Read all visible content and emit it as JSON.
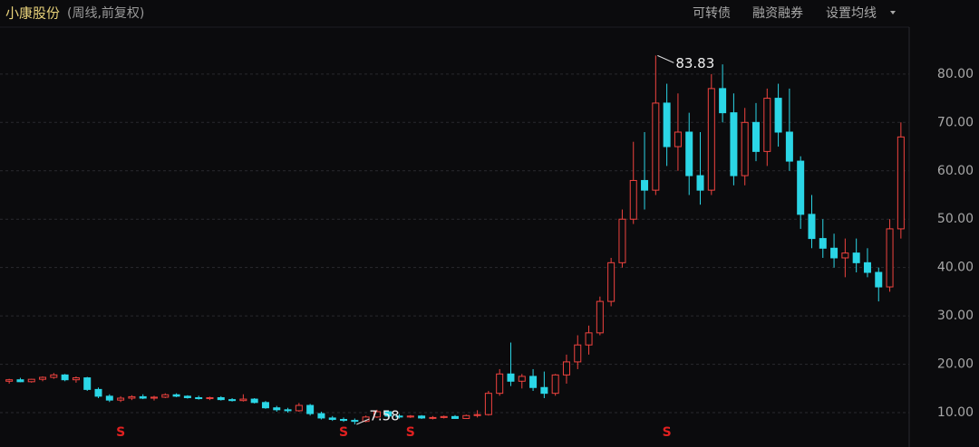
{
  "header": {
    "title": "小康股份",
    "subtitle": "(周线,前复权)",
    "buttons": [
      "可转债",
      "融资融券",
      "设置均线"
    ]
  },
  "chart_data": {
    "type": "candlestick",
    "open": [
      16.5,
      16.8,
      16.4,
      16.9,
      17.3,
      17.8,
      16.8,
      17.2,
      14.8,
      13.4,
      12.6,
      13,
      13.3,
      13,
      13.2,
      13.7,
      13.4,
      13.1,
      12.9,
      13.1,
      12.7,
      12.5,
      12.8,
      12.1,
      11,
      10.6,
      10.4,
      11.5,
      9.8,
      8.9,
      8.6,
      8.4,
      8.2,
      9.1,
      10.2,
      9.3,
      9.1,
      9.3,
      8.9,
      9,
      9.2,
      8.8,
      9.4,
      9.6,
      14,
      18,
      16.5,
      17.5,
      15.2,
      14,
      17.8,
      20.5,
      24,
      26.5,
      33,
      41,
      50,
      58,
      56,
      74,
      65,
      68,
      59,
      56,
      77,
      72,
      59,
      70,
      64,
      75,
      68,
      62,
      51,
      46,
      44,
      42,
      43,
      41,
      39,
      36,
      48
    ],
    "high": [
      17,
      17.2,
      17,
      17.5,
      18.2,
      18,
      17.5,
      17.4,
      15.2,
      13.8,
      13.4,
      13.6,
      13.8,
      13.5,
      14,
      14,
      13.6,
      13.5,
      13.3,
      13.4,
      13,
      13.8,
      13,
      12.4,
      11.4,
      11,
      12,
      11.8,
      10.2,
      9.3,
      9,
      8.8,
      9.4,
      10.6,
      10.4,
      9.7,
      9.5,
      9.5,
      9.3,
      9.4,
      9.5,
      9.6,
      10.5,
      14.5,
      19,
      24.5,
      18,
      19,
      18.5,
      18,
      22,
      26,
      28,
      34,
      42,
      52,
      66,
      68,
      83.83,
      78,
      76,
      72,
      68,
      80,
      82,
      76,
      73,
      74,
      77,
      78,
      77,
      63,
      55,
      50,
      47,
      46,
      46,
      44,
      40,
      50,
      70
    ],
    "low": [
      16,
      16.3,
      16.2,
      16.5,
      17,
      16.5,
      16.2,
      14.5,
      13,
      12.2,
      12.2,
      12.6,
      12.8,
      12.5,
      13,
      13.2,
      12.9,
      12.7,
      12.6,
      12.5,
      12.3,
      12.3,
      11.9,
      10.8,
      10.2,
      10,
      10.2,
      9.4,
      8.6,
      8.3,
      8.1,
      7.58,
      8,
      8.9,
      9,
      8.8,
      8.9,
      8.7,
      8.6,
      8.8,
      8.7,
      8.7,
      9,
      9.4,
      13.5,
      15.5,
      15,
      14.5,
      13,
      13.5,
      16,
      19,
      22,
      26,
      32,
      40,
      49,
      52,
      55,
      61,
      60,
      55,
      53,
      55,
      70,
      57,
      57,
      62,
      61,
      65,
      60,
      48,
      44,
      42,
      40,
      38,
      39,
      38,
      33,
      35,
      46
    ],
    "close": [
      16.8,
      16.4,
      16.9,
      17.3,
      17.8,
      16.8,
      17.2,
      14.8,
      13.4,
      12.6,
      13,
      13.3,
      13,
      13.2,
      13.7,
      13.4,
      13.1,
      12.9,
      13.1,
      12.7,
      12.5,
      12.8,
      12.1,
      11,
      10.6,
      10.4,
      11.5,
      9.8,
      8.9,
      8.6,
      8.4,
      8.2,
      9.1,
      10.2,
      9.3,
      9.1,
      9.3,
      8.9,
      9,
      9.2,
      8.8,
      9.4,
      9.6,
      14,
      18,
      16.5,
      17.5,
      15.2,
      14,
      17.8,
      20.5,
      24,
      26.5,
      33,
      41,
      50,
      58,
      56,
      74,
      65,
      68,
      59,
      56,
      77,
      72,
      59,
      70,
      64,
      75,
      68,
      62,
      51,
      46,
      44,
      42,
      43,
      41,
      39,
      36,
      48,
      67
    ],
    "up_color": "#f0433f",
    "down_color": "#2bd6e6",
    "ylim": [
      2.9,
      89.7
    ],
    "yticks": [
      {
        "value": 10,
        "label": "10.00"
      },
      {
        "value": 20,
        "label": "20.00"
      },
      {
        "value": 30,
        "label": "30.00"
      },
      {
        "value": 40,
        "label": "40.00"
      },
      {
        "value": 50,
        "label": "50.00"
      },
      {
        "value": 60,
        "label": "60.00"
      },
      {
        "value": 70,
        "label": "70.00"
      },
      {
        "value": 80,
        "label": "80.00"
      }
    ],
    "grid": true,
    "max_index": 58,
    "min_index": 31,
    "dividend_indices": [
      10,
      30,
      36,
      59
    ]
  }
}
